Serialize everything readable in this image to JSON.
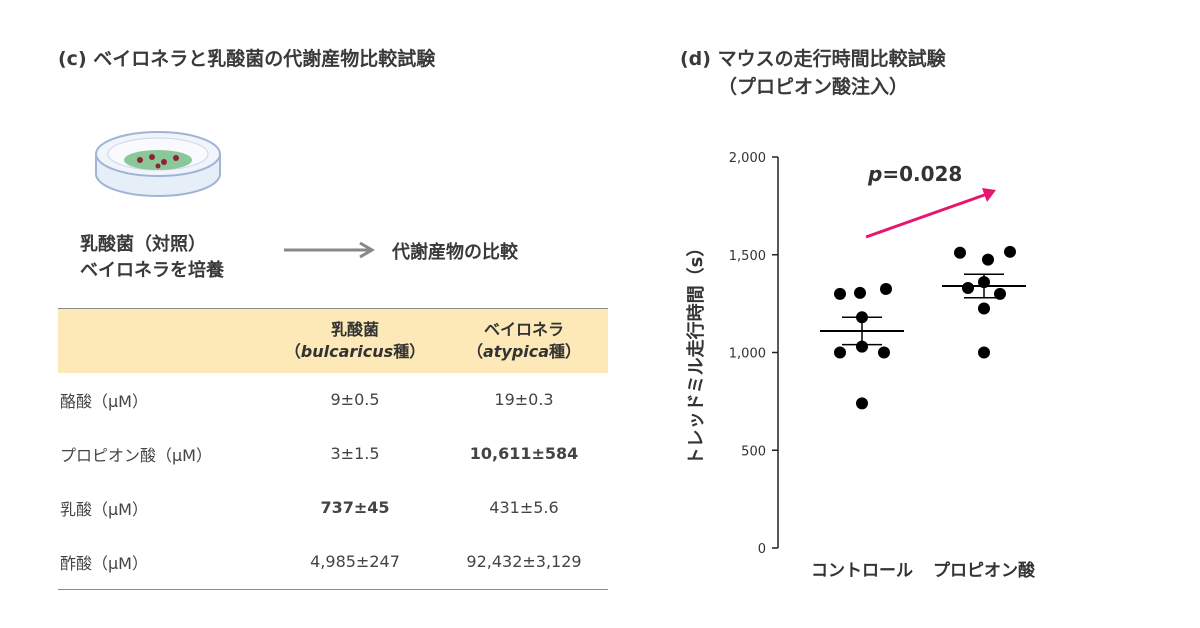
{
  "panel_c": {
    "title": "(c) ベイロネラと乳酸菌の代謝産物比較試験",
    "dish_label_line1": "乳酸菌（対照）",
    "dish_label_line2": "ベイロネラを培養",
    "compare_label": "代謝産物の比較",
    "table": {
      "col1_line1": "乳酸菌",
      "col1_line2_open": "（",
      "col1_line2_species": "bulcaricus",
      "col1_line2_close": "種）",
      "col2_line1": "ベイロネラ",
      "col2_line2_open": "（",
      "col2_line2_species": "atypica",
      "col2_line2_close": "種）",
      "rows": [
        {
          "label": "酪酸（µM）",
          "lactobacillus": "9±0.5",
          "veillonella": "19±0.3",
          "highlight": ""
        },
        {
          "label": "プロピオン酸（µM）",
          "lactobacillus": "3±1.5",
          "veillonella": "10,611±584",
          "highlight": "veillonella"
        },
        {
          "label": "乳酸（µM）",
          "lactobacillus": "737±45",
          "veillonella": "431±5.6",
          "highlight": "lactobacillus"
        },
        {
          "label": "酢酸（µM）",
          "lactobacillus": "4,985±247",
          "veillonella": "92,432±3,129",
          "highlight": ""
        }
      ]
    }
  },
  "panel_d": {
    "title_line1": "(d) マウスの走行時間比較試験",
    "title_line2": "（プロピオン酸注入）"
  },
  "colors": {
    "highlight_red": "#e8141c",
    "arrow_pink": "#e6166e",
    "table_header_bg": "#fde9b8",
    "arrow_gray": "#888888"
  },
  "chart_data": {
    "type": "scatter",
    "title": "",
    "ylabel": "トレッドミル走行時間（s）",
    "xlabel": "",
    "ylim": [
      0,
      2000
    ],
    "yticks": [
      0,
      500,
      1000,
      1500,
      2000
    ],
    "ytick_labels": [
      "0",
      "500",
      "1,000",
      "1,500",
      "2,000"
    ],
    "categories": [
      "コントロール",
      "プロピオン酸"
    ],
    "series": [
      {
        "category": "コントロール",
        "values": [
          1300,
          1305,
          1325,
          1180,
          1000,
          1030,
          1000,
          740
        ],
        "mean": 1110,
        "sem": 70
      },
      {
        "category": "プロピオン酸",
        "values": [
          1510,
          1475,
          1515,
          1360,
          1330,
          1300,
          1225,
          1000
        ],
        "mean": 1340,
        "sem": 60
      }
    ],
    "annotation_p": "p",
    "annotation_value": "=0.028"
  }
}
